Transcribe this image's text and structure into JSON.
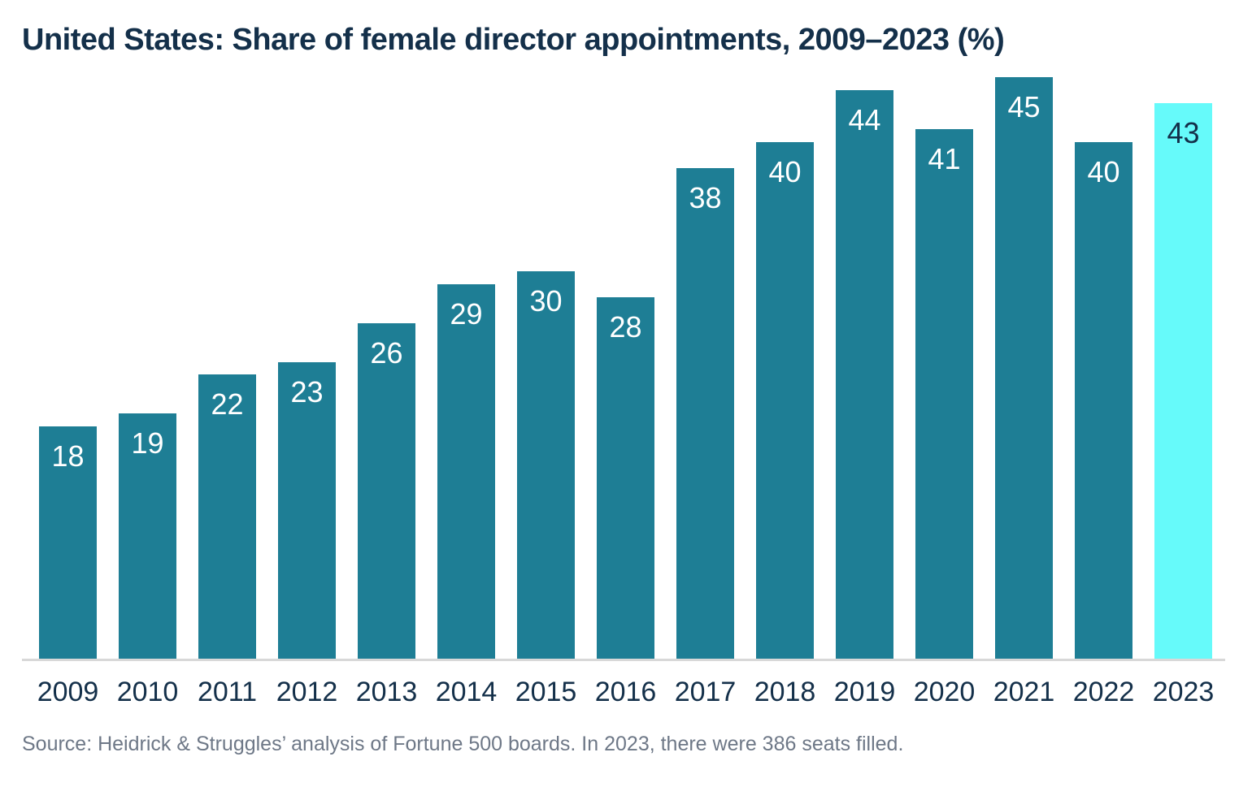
{
  "header": {
    "title": "United States: Share of female director appointments, 2009–2023 (%)"
  },
  "chart_data": {
    "type": "bar",
    "title": "United States: Share of female director appointments, 2009–2023 (%)",
    "categories": [
      "2009",
      "2010",
      "2011",
      "2012",
      "2013",
      "2014",
      "2015",
      "2016",
      "2017",
      "2018",
      "2019",
      "2020",
      "2021",
      "2022",
      "2023"
    ],
    "values": [
      18,
      19,
      22,
      23,
      26,
      29,
      30,
      28,
      38,
      40,
      44,
      41,
      45,
      40,
      43
    ],
    "xlabel": "",
    "ylabel": "",
    "ylim": [
      0,
      45
    ],
    "grid": false,
    "legend": false,
    "value_labels": "inside-top",
    "highlight_index": 14
  },
  "colors": {
    "bar": "#1e7e95",
    "bar_highlight": "#66fafa",
    "label_on_bar": "#ffffff",
    "label_on_highlight": "#14304a",
    "title_text": "#14304a",
    "axis_text": "#14304a",
    "source_text": "#6e7887",
    "baseline": "#d8d8d8",
    "background": "#ffffff"
  },
  "footer": {
    "source": "Source: Heidrick & Struggles’ analysis of Fortune 500 boards. In 2023, there were 386 seats filled."
  }
}
